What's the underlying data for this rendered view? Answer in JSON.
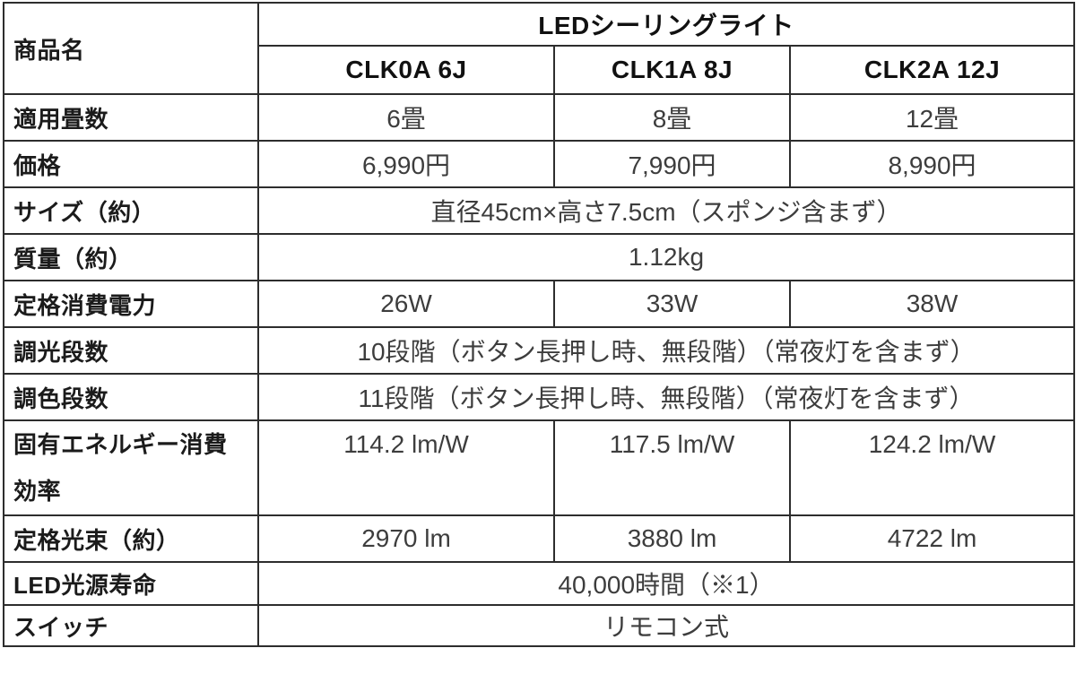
{
  "table": {
    "product_label": "商品名",
    "product_name": "LEDシーリングライト",
    "models": [
      "CLK0A 6J",
      "CLK1A 8J",
      "CLK2A 12J"
    ],
    "rows": [
      {
        "label": "適用畳数",
        "values": [
          "6畳",
          "8畳",
          "12畳"
        ]
      },
      {
        "label": "価格",
        "values": [
          "6,990円",
          "7,990円",
          "8,990円"
        ]
      },
      {
        "label": "サイズ（約）",
        "value": "直径45cm×高さ7.5cm（スポンジ含まず）"
      },
      {
        "label": "質量（約）",
        "value": "1.12kg"
      },
      {
        "label": "定格消費電力",
        "values": [
          "26W",
          "33W",
          "38W"
        ]
      },
      {
        "label": "調光段数",
        "value": "10段階（ボタン長押し時、無段階）（常夜灯を含まず）"
      },
      {
        "label": "調色段数",
        "value": "11段階（ボタン長押し時、無段階）（常夜灯を含まず）"
      },
      {
        "label": "固有エネルギー消費\n効率",
        "values": [
          "114.2 lm/W",
          "117.5 lm/W",
          "124.2 lm/W"
        ],
        "tall": true
      },
      {
        "label": "定格光束（約）",
        "values": [
          "2970 lm",
          "3880 lm",
          "4722 lm"
        ]
      },
      {
        "label": "LED光源寿命",
        "value": "40,000時間（※1）"
      },
      {
        "label": "スイッチ",
        "value": "リモコン式"
      }
    ]
  },
  "colors": {
    "background": "#ffffff",
    "border": "#2d2d2d",
    "label_text": "#1b1b1b",
    "value_text": "#3d3d3d",
    "header_text": "#111111"
  }
}
